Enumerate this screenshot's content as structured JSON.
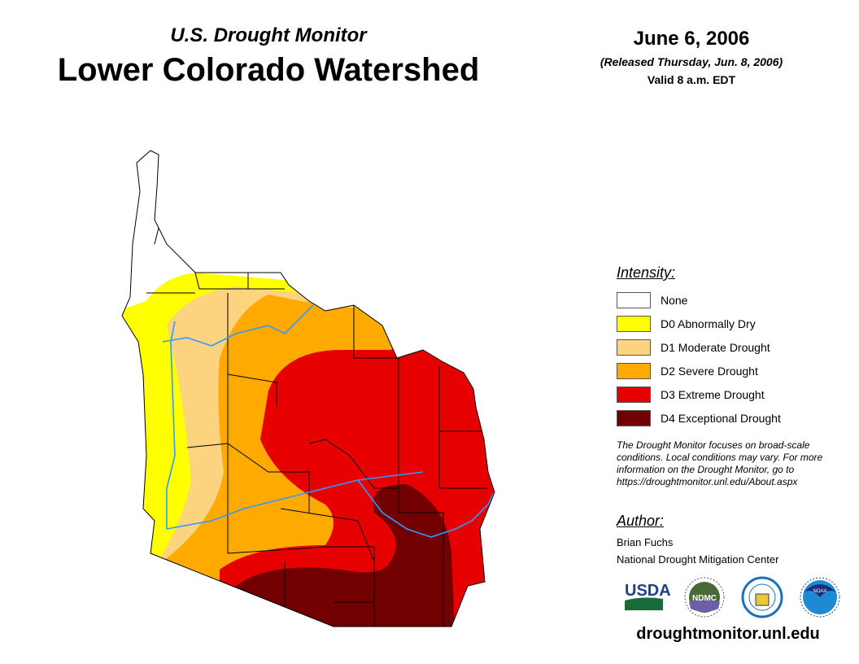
{
  "header": {
    "subtitle": "U.S. Drought Monitor",
    "title": "Lower Colorado Watershed",
    "date": "June 6, 2006",
    "released": "(Released Thursday, Jun. 8, 2006)",
    "valid": "Valid 8 a.m. EDT"
  },
  "legend": {
    "title": "Intensity:",
    "items": [
      {
        "label": "None",
        "color": "#ffffff"
      },
      {
        "label": "D0 Abnormally Dry",
        "color": "#ffff00"
      },
      {
        "label": "D1 Moderate Drought",
        "color": "#fcd37f"
      },
      {
        "label": "D2 Severe Drought",
        "color": "#ffaa00"
      },
      {
        "label": "D3 Extreme Drought",
        "color": "#e60000"
      },
      {
        "label": "D4 Exceptional Drought",
        "color": "#730000"
      }
    ]
  },
  "note": "The Drought Monitor focuses on broad-scale conditions. Local conditions may vary. For more information on the Drought Monitor, go to https://droughtmonitor.unl.edu/About.aspx",
  "author": {
    "title": "Author:",
    "name": "Brian Fuchs",
    "org": "National Drought Mitigation Center"
  },
  "logos": {
    "usda": "USDA",
    "ndmc": "NDMC",
    "noaa": "NOAA"
  },
  "url": "droughtmonitor.unl.edu"
}
